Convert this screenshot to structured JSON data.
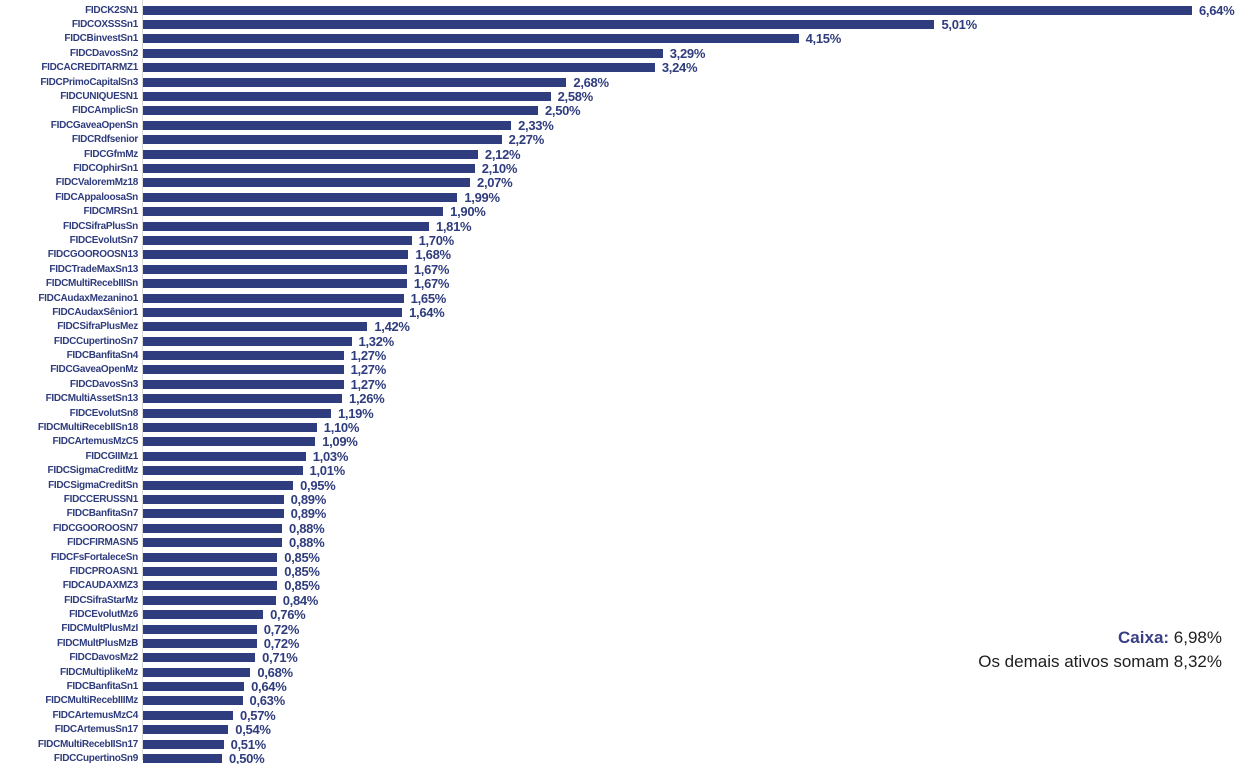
{
  "chart_data": {
    "type": "bar",
    "orientation": "horizontal",
    "title": "",
    "xlabel": "",
    "ylabel": "",
    "grid": false,
    "legend": false,
    "axis_max": 6.64,
    "bar_color": "#2F3C7D",
    "value_label_color": "#2F3C7D",
    "bars": [
      {
        "label": "FIDCK2SN1",
        "value": 6.64,
        "display": "6,64%"
      },
      {
        "label": "FIDCOXSSSn1",
        "value": 5.01,
        "display": "5,01%"
      },
      {
        "label": "FIDCBinvestSn1",
        "value": 4.15,
        "display": "4,15%"
      },
      {
        "label": "FIDCDavosSn2",
        "value": 3.29,
        "display": "3,29%"
      },
      {
        "label": "FIDCACREDITARMZ1",
        "value": 3.24,
        "display": "3,24%"
      },
      {
        "label": "FIDCPrimoCapitalSn3",
        "value": 2.68,
        "display": "2,68%"
      },
      {
        "label": "FIDCUNIQUESN1",
        "value": 2.58,
        "display": "2,58%"
      },
      {
        "label": "FIDCAmplicSn",
        "value": 2.5,
        "display": "2,50%"
      },
      {
        "label": "FIDCGaveaOpenSn",
        "value": 2.33,
        "display": "2,33%"
      },
      {
        "label": "FIDCRdfsenior",
        "value": 2.27,
        "display": "2,27%"
      },
      {
        "label": "FIDCGfmMz",
        "value": 2.12,
        "display": "2,12%"
      },
      {
        "label": "FIDCOphirSn1",
        "value": 2.1,
        "display": "2,10%"
      },
      {
        "label": "FIDCValoremMz18",
        "value": 2.07,
        "display": "2,07%"
      },
      {
        "label": "FIDCAppaloosaSn",
        "value": 1.99,
        "display": "1,99%"
      },
      {
        "label": "FIDCMRSn1",
        "value": 1.9,
        "display": "1,90%"
      },
      {
        "label": "FIDCSifraPlusSn",
        "value": 1.81,
        "display": "1,81%"
      },
      {
        "label": "FIDCEvolutSn7",
        "value": 1.7,
        "display": "1,70%"
      },
      {
        "label": "FIDCGOOROOSN13",
        "value": 1.68,
        "display": "1,68%"
      },
      {
        "label": "FIDCTradeMaxSn13",
        "value": 1.67,
        "display": "1,67%"
      },
      {
        "label": "FIDCMultiRecebIIISn",
        "value": 1.67,
        "display": "1,67%"
      },
      {
        "label": "FIDCAudaxMezanino1",
        "value": 1.65,
        "display": "1,65%"
      },
      {
        "label": "FIDCAudaxSênior1",
        "value": 1.64,
        "display": "1,64%"
      },
      {
        "label": "FIDCSifraPlusMez",
        "value": 1.42,
        "display": "1,42%"
      },
      {
        "label": "FIDCCupertinoSn7",
        "value": 1.32,
        "display": "1,32%"
      },
      {
        "label": "FIDCBanfitaSn4",
        "value": 1.27,
        "display": "1,27%"
      },
      {
        "label": "FIDCGaveaOpenMz",
        "value": 1.27,
        "display": "1,27%"
      },
      {
        "label": "FIDCDavosSn3",
        "value": 1.27,
        "display": "1,27%"
      },
      {
        "label": "FIDCMultiAssetSn13",
        "value": 1.26,
        "display": "1,26%"
      },
      {
        "label": "FIDCEvolutSn8",
        "value": 1.19,
        "display": "1,19%"
      },
      {
        "label": "FIDCMultiRecebIISn18",
        "value": 1.1,
        "display": "1,10%"
      },
      {
        "label": "FIDCArtemusMzC5",
        "value": 1.09,
        "display": "1,09%"
      },
      {
        "label": "FIDCGIIMz1",
        "value": 1.03,
        "display": "1,03%"
      },
      {
        "label": "FIDCSigmaCreditMz",
        "value": 1.01,
        "display": "1,01%"
      },
      {
        "label": "FIDCSigmaCreditSn",
        "value": 0.95,
        "display": "0,95%"
      },
      {
        "label": "FIDCCERUSSN1",
        "value": 0.89,
        "display": "0,89%"
      },
      {
        "label": "FIDCBanfitaSn7",
        "value": 0.89,
        "display": "0,89%"
      },
      {
        "label": "FIDCGOOROOSN7",
        "value": 0.88,
        "display": "0,88%"
      },
      {
        "label": "FIDCFIRMASN5",
        "value": 0.88,
        "display": "0,88%"
      },
      {
        "label": "FIDCFsFortaleceSn",
        "value": 0.85,
        "display": "0,85%"
      },
      {
        "label": "FIDCPROASN1",
        "value": 0.85,
        "display": "0,85%"
      },
      {
        "label": "FIDCAUDAXMZ3",
        "value": 0.85,
        "display": "0,85%"
      },
      {
        "label": "FIDCSifraStarMz",
        "value": 0.84,
        "display": "0,84%"
      },
      {
        "label": "FIDCEvolutMz6",
        "value": 0.76,
        "display": "0,76%"
      },
      {
        "label": "FIDCMultPlusMzI",
        "value": 0.72,
        "display": "0,72%"
      },
      {
        "label": "FIDCMultPlusMzB",
        "value": 0.72,
        "display": "0,72%"
      },
      {
        "label": "FIDCDavosMz2",
        "value": 0.71,
        "display": "0,71%"
      },
      {
        "label": "FIDCMultiplikeMz",
        "value": 0.68,
        "display": "0,68%"
      },
      {
        "label": "FIDCBanfitaSn1",
        "value": 0.64,
        "display": "0,64%"
      },
      {
        "label": "FIDCMultiRecebIIIMz",
        "value": 0.63,
        "display": "0,63%"
      },
      {
        "label": "FIDCArtemusMzC4",
        "value": 0.57,
        "display": "0,57%"
      },
      {
        "label": "FIDCArtemusSn17",
        "value": 0.54,
        "display": "0,54%"
      },
      {
        "label": "FIDCMultiRecebIISn17",
        "value": 0.51,
        "display": "0,51%"
      },
      {
        "label": "FIDCCupertinoSn9",
        "value": 0.5,
        "display": "0,50%"
      }
    ]
  },
  "annotation": {
    "caixa_label": "Caixa:",
    "caixa_value": "6,98%",
    "others_text": "Os demais ativos somam 8,32%"
  }
}
